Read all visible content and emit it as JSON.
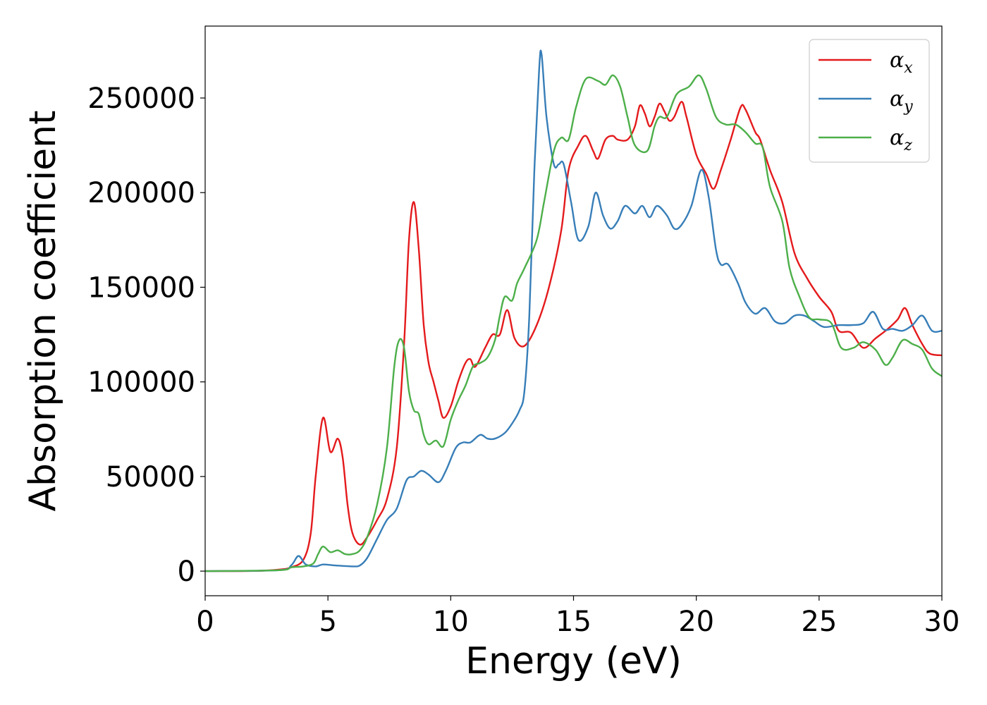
{
  "chart_data": {
    "type": "line",
    "title": "",
    "xlabel": "Energy (eV)",
    "ylabel": "Absorption coefficient",
    "xlim": [
      0,
      30
    ],
    "ylim": [
      -13000,
      288000
    ],
    "xticks": [
      0,
      5,
      10,
      15,
      20,
      25,
      30
    ],
    "xtick_labels": [
      "0",
      "5",
      "10",
      "15",
      "20",
      "25",
      "30"
    ],
    "yticks": [
      0,
      50000,
      100000,
      150000,
      200000,
      250000
    ],
    "ytick_labels": [
      "0",
      "50000",
      "100000",
      "150000",
      "200000",
      "250000"
    ],
    "grid": false,
    "legend_position": "top-right",
    "series": [
      {
        "name": "α_x",
        "legend_base": "α",
        "legend_sub": "x",
        "color": "#e41a1c",
        "points": [
          [
            0,
            0
          ],
          [
            2.0,
            100
          ],
          [
            3.0,
            800
          ],
          [
            3.5,
            2000
          ],
          [
            4.0,
            6000
          ],
          [
            4.3,
            20000
          ],
          [
            4.5,
            50000
          ],
          [
            4.8,
            81000
          ],
          [
            5.1,
            63000
          ],
          [
            5.4,
            70000
          ],
          [
            5.6,
            60000
          ],
          [
            5.8,
            35000
          ],
          [
            6.0,
            20000
          ],
          [
            6.3,
            14000
          ],
          [
            6.6,
            18000
          ],
          [
            7.0,
            27000
          ],
          [
            7.4,
            38000
          ],
          [
            7.8,
            65000
          ],
          [
            8.1,
            120000
          ],
          [
            8.3,
            175000
          ],
          [
            8.5,
            195000
          ],
          [
            8.7,
            170000
          ],
          [
            8.9,
            130000
          ],
          [
            9.1,
            110000
          ],
          [
            9.3,
            100000
          ],
          [
            9.5,
            90000
          ],
          [
            9.7,
            81000
          ],
          [
            10.0,
            87000
          ],
          [
            10.3,
            100000
          ],
          [
            10.6,
            110000
          ],
          [
            10.8,
            112000
          ],
          [
            11.0,
            108000
          ],
          [
            11.4,
            118000
          ],
          [
            11.7,
            125000
          ],
          [
            12.0,
            125000
          ],
          [
            12.3,
            138000
          ],
          [
            12.6,
            123000
          ],
          [
            13.0,
            119000
          ],
          [
            13.5,
            130000
          ],
          [
            14.0,
            150000
          ],
          [
            14.5,
            180000
          ],
          [
            14.8,
            212000
          ],
          [
            15.2,
            225000
          ],
          [
            15.5,
            230000
          ],
          [
            15.8,
            222000
          ],
          [
            16.0,
            218000
          ],
          [
            16.3,
            228000
          ],
          [
            16.6,
            230000
          ],
          [
            16.8,
            228000
          ],
          [
            17.2,
            228000
          ],
          [
            17.5,
            235000
          ],
          [
            17.7,
            246000
          ],
          [
            17.9,
            242000
          ],
          [
            18.1,
            235000
          ],
          [
            18.3,
            240000
          ],
          [
            18.5,
            247000
          ],
          [
            18.7,
            243000
          ],
          [
            18.9,
            238000
          ],
          [
            19.1,
            240000
          ],
          [
            19.4,
            248000
          ],
          [
            19.6,
            240000
          ],
          [
            20.0,
            220000
          ],
          [
            20.4,
            210000
          ],
          [
            20.7,
            202000
          ],
          [
            21.0,
            212000
          ],
          [
            21.4,
            228000
          ],
          [
            21.8,
            245000
          ],
          [
            22.0,
            244000
          ],
          [
            22.4,
            232000
          ],
          [
            22.6,
            228000
          ],
          [
            23.0,
            212000
          ],
          [
            23.5,
            195000
          ],
          [
            24.0,
            168000
          ],
          [
            24.5,
            155000
          ],
          [
            25.0,
            145000
          ],
          [
            25.5,
            137000
          ],
          [
            25.8,
            127000
          ],
          [
            26.3,
            126000
          ],
          [
            26.8,
            118000
          ],
          [
            27.3,
            123000
          ],
          [
            27.8,
            128000
          ],
          [
            28.2,
            133000
          ],
          [
            28.5,
            139000
          ],
          [
            28.8,
            130000
          ],
          [
            29.2,
            120000
          ],
          [
            29.5,
            115000
          ],
          [
            30.0,
            114000
          ]
        ]
      },
      {
        "name": "α_y",
        "legend_base": "α",
        "legend_sub": "y",
        "color": "#377eb8",
        "points": [
          [
            0,
            0
          ],
          [
            3.0,
            500
          ],
          [
            3.5,
            3000
          ],
          [
            3.8,
            8000
          ],
          [
            4.1,
            3500
          ],
          [
            4.5,
            2500
          ],
          [
            4.8,
            3500
          ],
          [
            5.3,
            3000
          ],
          [
            6.0,
            2500
          ],
          [
            6.3,
            3000
          ],
          [
            6.6,
            7000
          ],
          [
            7.0,
            17000
          ],
          [
            7.4,
            27000
          ],
          [
            7.8,
            33000
          ],
          [
            8.2,
            48000
          ],
          [
            8.5,
            50000
          ],
          [
            8.8,
            53000
          ],
          [
            9.1,
            51000
          ],
          [
            9.5,
            47000
          ],
          [
            9.8,
            53000
          ],
          [
            10.2,
            65000
          ],
          [
            10.5,
            68000
          ],
          [
            10.8,
            68000
          ],
          [
            11.2,
            72000
          ],
          [
            11.5,
            70000
          ],
          [
            11.8,
            70000
          ],
          [
            12.2,
            73000
          ],
          [
            12.5,
            78000
          ],
          [
            12.8,
            85000
          ],
          [
            13.0,
            95000
          ],
          [
            13.2,
            135000
          ],
          [
            13.4,
            210000
          ],
          [
            13.6,
            265000
          ],
          [
            13.7,
            273000
          ],
          [
            13.9,
            240000
          ],
          [
            14.2,
            215000
          ],
          [
            14.4,
            215000
          ],
          [
            14.6,
            215000
          ],
          [
            14.9,
            195000
          ],
          [
            15.2,
            175000
          ],
          [
            15.6,
            182000
          ],
          [
            15.9,
            200000
          ],
          [
            16.2,
            188000
          ],
          [
            16.5,
            181000
          ],
          [
            16.8,
            185000
          ],
          [
            17.1,
            193000
          ],
          [
            17.5,
            189000
          ],
          [
            17.8,
            193000
          ],
          [
            18.1,
            187000
          ],
          [
            18.4,
            193000
          ],
          [
            18.8,
            188000
          ],
          [
            19.1,
            181000
          ],
          [
            19.4,
            183000
          ],
          [
            19.8,
            193000
          ],
          [
            20.2,
            212000
          ],
          [
            20.5,
            198000
          ],
          [
            20.8,
            170000
          ],
          [
            21.0,
            162000
          ],
          [
            21.3,
            162000
          ],
          [
            21.7,
            152000
          ],
          [
            22.0,
            142000
          ],
          [
            22.4,
            136000
          ],
          [
            22.8,
            139000
          ],
          [
            23.2,
            132000
          ],
          [
            23.6,
            131000
          ],
          [
            24.0,
            135000
          ],
          [
            24.4,
            135000
          ],
          [
            24.8,
            132000
          ],
          [
            25.2,
            129000
          ],
          [
            25.8,
            130000
          ],
          [
            26.3,
            130000
          ],
          [
            26.8,
            131000
          ],
          [
            27.2,
            137000
          ],
          [
            27.6,
            128000
          ],
          [
            28.0,
            128000
          ],
          [
            28.4,
            127000
          ],
          [
            28.8,
            130000
          ],
          [
            29.2,
            135000
          ],
          [
            29.6,
            127000
          ],
          [
            30.0,
            127000
          ]
        ]
      },
      {
        "name": "α_z",
        "legend_base": "α",
        "legend_sub": "z",
        "color": "#4daf4a",
        "points": [
          [
            0,
            0
          ],
          [
            3.0,
            500
          ],
          [
            3.5,
            2000
          ],
          [
            4.0,
            2500
          ],
          [
            4.4,
            4000
          ],
          [
            4.6,
            9000
          ],
          [
            4.8,
            13000
          ],
          [
            5.1,
            10000
          ],
          [
            5.4,
            11000
          ],
          [
            5.7,
            9000
          ],
          [
            6.0,
            9000
          ],
          [
            6.3,
            11000
          ],
          [
            6.6,
            18000
          ],
          [
            7.0,
            35000
          ],
          [
            7.4,
            65000
          ],
          [
            7.7,
            108000
          ],
          [
            7.9,
            122000
          ],
          [
            8.1,
            118000
          ],
          [
            8.3,
            95000
          ],
          [
            8.5,
            85000
          ],
          [
            8.7,
            83000
          ],
          [
            8.9,
            72000
          ],
          [
            9.1,
            67000
          ],
          [
            9.4,
            69000
          ],
          [
            9.7,
            66000
          ],
          [
            10.0,
            80000
          ],
          [
            10.3,
            90000
          ],
          [
            10.6,
            98000
          ],
          [
            10.9,
            108000
          ],
          [
            11.2,
            110000
          ],
          [
            11.5,
            113000
          ],
          [
            11.8,
            122000
          ],
          [
            12.0,
            135000
          ],
          [
            12.2,
            145000
          ],
          [
            12.5,
            143000
          ],
          [
            12.7,
            152000
          ],
          [
            13.0,
            160000
          ],
          [
            13.5,
            175000
          ],
          [
            13.8,
            195000
          ],
          [
            14.2,
            222000
          ],
          [
            14.5,
            229000
          ],
          [
            14.8,
            228000
          ],
          [
            15.1,
            245000
          ],
          [
            15.5,
            260000
          ],
          [
            16.0,
            259000
          ],
          [
            16.3,
            257000
          ],
          [
            16.6,
            262000
          ],
          [
            16.9,
            256000
          ],
          [
            17.2,
            240000
          ],
          [
            17.5,
            225000
          ],
          [
            18.0,
            222000
          ],
          [
            18.3,
            235000
          ],
          [
            18.5,
            240000
          ],
          [
            18.8,
            240000
          ],
          [
            19.2,
            252000
          ],
          [
            19.7,
            256000
          ],
          [
            20.1,
            262000
          ],
          [
            20.4,
            255000
          ],
          [
            20.8,
            240000
          ],
          [
            21.2,
            236000
          ],
          [
            21.6,
            236000
          ],
          [
            22.0,
            232000
          ],
          [
            22.4,
            226000
          ],
          [
            22.7,
            224000
          ],
          [
            23.0,
            203000
          ],
          [
            23.5,
            185000
          ],
          [
            23.8,
            160000
          ],
          [
            24.2,
            145000
          ],
          [
            24.6,
            134000
          ],
          [
            25.0,
            133000
          ],
          [
            25.5,
            131000
          ],
          [
            25.9,
            118000
          ],
          [
            26.4,
            118000
          ],
          [
            26.8,
            121000
          ],
          [
            27.3,
            117000
          ],
          [
            27.7,
            109000
          ],
          [
            28.0,
            113000
          ],
          [
            28.4,
            122000
          ],
          [
            28.8,
            120000
          ],
          [
            29.2,
            117000
          ],
          [
            29.6,
            107000
          ],
          [
            30.0,
            103000
          ]
        ]
      }
    ]
  }
}
